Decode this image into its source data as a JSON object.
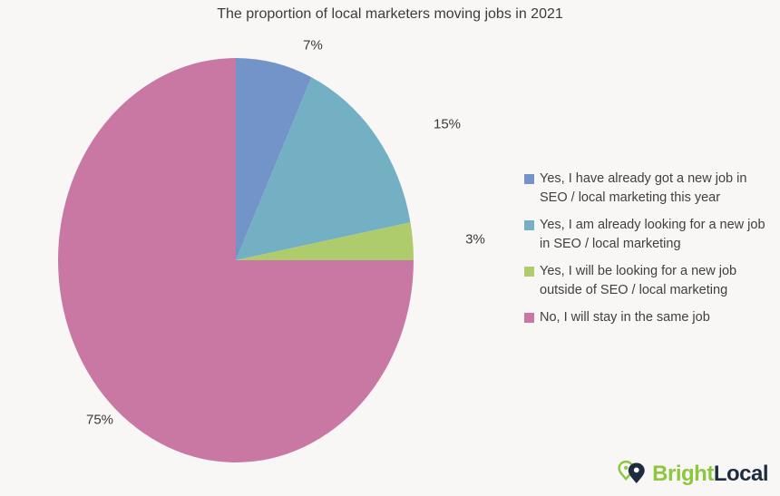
{
  "chart_data": {
    "type": "pie",
    "title": "The proportion of local marketers moving jobs in 2021",
    "value_suffix": "%",
    "start_angle_deg": 0,
    "direction": "clockwise",
    "legend_position": "right",
    "background": "#f8f7f5",
    "slices": [
      {
        "label": "Yes, I have already got a new job in SEO / local marketing this year",
        "value": 7,
        "color": "#7394c9"
      },
      {
        "label": "Yes, I am already looking for a new job in SEO / local marketing",
        "value": 15,
        "color": "#74b0c4"
      },
      {
        "label": "Yes, I will be looking for a new job outside of SEO / local marketing",
        "value": 3,
        "color": "#afcc6c"
      },
      {
        "label": "No, I will stay in the same job",
        "value": 75,
        "color": "#c978a4"
      }
    ],
    "data_labels": [
      "7%",
      "15%",
      "3%",
      "75%"
    ]
  },
  "branding": {
    "logo_icon": "map-pin-icon",
    "logo_text_primary": "Bright",
    "logo_text_secondary": "Local",
    "logo_primary_color": "#8dc63f",
    "logo_secondary_color": "#1f2c3e"
  }
}
